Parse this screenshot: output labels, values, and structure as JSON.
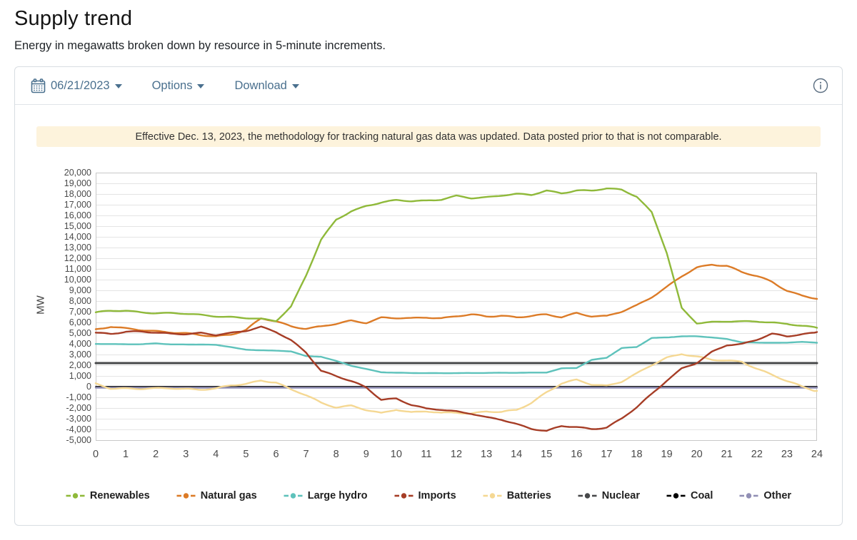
{
  "header": {
    "title": "Supply trend",
    "subtitle": "Energy in megawatts broken down by resource in 5-minute increments."
  },
  "toolbar": {
    "date_value": "06/21/2023",
    "options_label": "Options",
    "download_label": "Download"
  },
  "icons": {
    "date_picker": "calendar-icon",
    "dropdown": "chevron-down-icon",
    "info": "info-circle-icon"
  },
  "notice": {
    "text": "Effective Dec. 13, 2023, the methodology for tracking natural gas data was updated. Data posted prior to that is not comparable."
  },
  "colors": {
    "accent_blue": "#4a708e",
    "notice_bg": "#fdf3dc",
    "grid": "#e4e4e4",
    "plot_border": "#c8c8c8",
    "axis_text": "#4a4a4a"
  },
  "chart_data": {
    "type": "line",
    "title": "",
    "xlabel": "",
    "ylabel": "MW",
    "ylim": [
      -5000,
      20000
    ],
    "xlim": [
      0,
      24
    ],
    "grid": "horizontal",
    "legend_position": "bottom",
    "y_ticks": [
      "20,000",
      "19,000",
      "18,000",
      "17,000",
      "16,000",
      "15,000",
      "14,000",
      "13,000",
      "12,000",
      "11,000",
      "10,000",
      "9,000",
      "8,000",
      "7,000",
      "6,000",
      "5,000",
      "4,000",
      "3,000",
      "2,000",
      "1,000",
      "0",
      "-1,000",
      "-2,000",
      "-3,000",
      "-4,000",
      "-5,000"
    ],
    "x_ticks": [
      "0",
      "1",
      "2",
      "3",
      "4",
      "5",
      "6",
      "7",
      "8",
      "9",
      "10",
      "11",
      "12",
      "13",
      "14",
      "15",
      "16",
      "17",
      "18",
      "19",
      "20",
      "21",
      "22",
      "23",
      "24"
    ],
    "x_hours": [
      0,
      0.5,
      1,
      1.5,
      2,
      2.5,
      3,
      3.5,
      4,
      4.5,
      5,
      5.5,
      6,
      6.5,
      7,
      7.5,
      8,
      8.5,
      9,
      9.5,
      10,
      10.5,
      11,
      11.5,
      12,
      12.5,
      13,
      13.5,
      14,
      14.5,
      15,
      15.5,
      16,
      16.5,
      17,
      17.5,
      18,
      18.5,
      19,
      19.5,
      20,
      20.5,
      21,
      21.5,
      22,
      22.5,
      23,
      23.5,
      24
    ],
    "units": "MW",
    "interval_minutes": 5,
    "series": [
      {
        "name": "Renewables",
        "color": "#8fb93a",
        "line_width": 2.4,
        "jitter": 70,
        "values": [
          6950,
          7050,
          7100,
          6950,
          6900,
          6850,
          6800,
          6700,
          6600,
          6500,
          6400,
          6300,
          6150,
          7500,
          10400,
          13700,
          15600,
          16400,
          16900,
          17200,
          17400,
          17350,
          17400,
          17500,
          17800,
          17600,
          17700,
          17900,
          18000,
          17900,
          18300,
          18100,
          18350,
          18300,
          18500,
          18400,
          17800,
          16300,
          12500,
          7300,
          5950,
          6050,
          6100,
          6050,
          6100,
          6000,
          5900,
          5650,
          5500
        ]
      },
      {
        "name": "Natural gas",
        "color": "#dc7b27",
        "line_width": 2.4,
        "jitter": 85,
        "values": [
          5350,
          5600,
          5400,
          5300,
          5200,
          5100,
          4950,
          4800,
          4700,
          4900,
          5300,
          6350,
          6100,
          5650,
          5450,
          5600,
          5850,
          6150,
          6000,
          6450,
          6400,
          6350,
          6500,
          6400,
          6600,
          6700,
          6550,
          6650,
          6500,
          6600,
          6700,
          6500,
          6900,
          6600,
          6550,
          7000,
          7600,
          8400,
          9300,
          10300,
          11100,
          11450,
          11300,
          10700,
          10300,
          9800,
          9000,
          8500,
          8200
        ]
      },
      {
        "name": "Large hydro",
        "color": "#5ec2bb",
        "line_width": 2.4,
        "jitter": 12,
        "values": [
          4000,
          3980,
          3960,
          3950,
          4050,
          3950,
          3940,
          3930,
          3900,
          3700,
          3450,
          3400,
          3350,
          3300,
          2850,
          2800,
          2400,
          1950,
          1650,
          1350,
          1300,
          1270,
          1260,
          1260,
          1270,
          1270,
          1280,
          1290,
          1300,
          1310,
          1320,
          1700,
          1750,
          2500,
          2700,
          3600,
          3700,
          4550,
          4600,
          4700,
          4700,
          4600,
          4450,
          4150,
          4100,
          4100,
          4100,
          4200,
          4100
        ]
      },
      {
        "name": "Imports",
        "color": "#a63d26",
        "line_width": 2.4,
        "jitter": 75,
        "values": [
          5050,
          4950,
          5150,
          5100,
          5050,
          4950,
          4950,
          5000,
          4800,
          5000,
          5250,
          5600,
          5100,
          4300,
          3200,
          1500,
          1000,
          500,
          -100,
          -1200,
          -1100,
          -1700,
          -2100,
          -2150,
          -2300,
          -2500,
          -2900,
          -3100,
          -3500,
          -3900,
          -4150,
          -3700,
          -3800,
          -3950,
          -3800,
          -3000,
          -1950,
          -700,
          600,
          1700,
          2200,
          3200,
          3900,
          4000,
          4400,
          4900,
          4700,
          4900,
          5100
        ]
      },
      {
        "name": "Batteries",
        "color": "#f5d893",
        "line_width": 2.4,
        "jitter": 85,
        "values": [
          250,
          -150,
          -150,
          -200,
          -200,
          -150,
          -200,
          -250,
          -200,
          100,
          250,
          600,
          400,
          -300,
          -800,
          -1500,
          -1900,
          -1800,
          -2200,
          -2500,
          -2100,
          -2400,
          -2300,
          -2500,
          -2400,
          -2500,
          -2300,
          -2400,
          -2200,
          -1500,
          -500,
          300,
          600,
          200,
          100,
          500,
          1200,
          2000,
          2700,
          3100,
          2800,
          2500,
          2400,
          2350,
          1700,
          1100,
          500,
          0,
          -400
        ]
      },
      {
        "name": "Nuclear",
        "color": "#47484a",
        "line_width": 3,
        "jitter": 0,
        "values": 2200
      },
      {
        "name": "Coal",
        "color": "#000000",
        "line_width": 1.6,
        "jitter": 0,
        "values": 10
      },
      {
        "name": "Other",
        "color": "#918fb5",
        "line_width": 2.4,
        "jitter": 6,
        "values": -100
      }
    ],
    "draw_order": [
      6,
      7,
      5,
      4,
      2,
      1,
      3,
      0
    ]
  }
}
